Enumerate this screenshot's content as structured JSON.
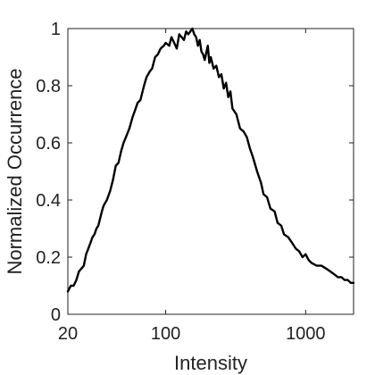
{
  "chart_data": {
    "type": "line",
    "title": "",
    "xlabel": "Intensity",
    "ylabel": "Normalized Occurrence",
    "xscale": "log",
    "xlim": [
      20,
      2200
    ],
    "ylim": [
      0,
      1
    ],
    "grid": false,
    "xticks": [
      {
        "value": 20,
        "label": "20"
      },
      {
        "value": 100,
        "label": "100"
      },
      {
        "value": 1000,
        "label": "1000"
      }
    ],
    "yticks": [
      {
        "value": 0,
        "label": "0"
      },
      {
        "value": 0.2,
        "label": "0.2"
      },
      {
        "value": 0.4,
        "label": "0.4"
      },
      {
        "value": 0.6,
        "label": "0.6"
      },
      {
        "value": 0.8,
        "label": "0.8"
      },
      {
        "value": 1,
        "label": "1"
      }
    ],
    "series": [
      {
        "color": "#000000",
        "x": [
          20,
          21,
          22,
          23,
          24,
          25,
          26,
          27,
          28,
          29,
          30,
          31,
          32,
          33,
          35,
          36,
          38,
          40,
          42,
          44,
          46,
          48,
          50,
          52,
          55,
          58,
          60,
          63,
          66,
          70,
          73,
          77,
          80,
          84,
          88,
          92,
          97,
          100,
          106,
          110,
          115,
          120,
          125,
          130,
          135,
          140,
          145,
          150,
          155,
          160,
          165,
          170,
          175,
          180,
          185,
          190,
          200,
          205,
          210,
          220,
          230,
          240,
          250,
          260,
          270,
          280,
          290,
          300,
          320,
          340,
          360,
          380,
          400,
          420,
          450,
          480,
          500,
          530,
          560,
          600,
          630,
          670,
          700,
          750,
          800,
          850,
          900,
          950,
          1000,
          1050,
          1100,
          1200,
          1300,
          1400,
          1500,
          1600,
          1700,
          1800,
          1900,
          2000,
          2100,
          2200
        ],
        "y": [
          0.08,
          0.1,
          0.1,
          0.12,
          0.15,
          0.16,
          0.17,
          0.21,
          0.23,
          0.25,
          0.27,
          0.28,
          0.3,
          0.31,
          0.36,
          0.38,
          0.4,
          0.43,
          0.47,
          0.52,
          0.53,
          0.57,
          0.6,
          0.62,
          0.65,
          0.69,
          0.71,
          0.74,
          0.75,
          0.8,
          0.83,
          0.85,
          0.86,
          0.9,
          0.91,
          0.93,
          0.94,
          0.95,
          0.94,
          0.97,
          0.95,
          0.93,
          0.98,
          0.97,
          0.96,
          0.99,
          0.98,
          0.99,
          1.0,
          0.98,
          0.97,
          0.94,
          0.96,
          0.92,
          0.91,
          0.89,
          0.94,
          0.88,
          0.9,
          0.86,
          0.87,
          0.83,
          0.84,
          0.79,
          0.81,
          0.76,
          0.78,
          0.72,
          0.7,
          0.65,
          0.64,
          0.62,
          0.58,
          0.55,
          0.5,
          0.46,
          0.42,
          0.41,
          0.37,
          0.36,
          0.32,
          0.31,
          0.28,
          0.27,
          0.25,
          0.23,
          0.22,
          0.2,
          0.21,
          0.19,
          0.18,
          0.17,
          0.17,
          0.16,
          0.15,
          0.14,
          0.13,
          0.13,
          0.12,
          0.12,
          0.11,
          0.11
        ]
      }
    ]
  }
}
